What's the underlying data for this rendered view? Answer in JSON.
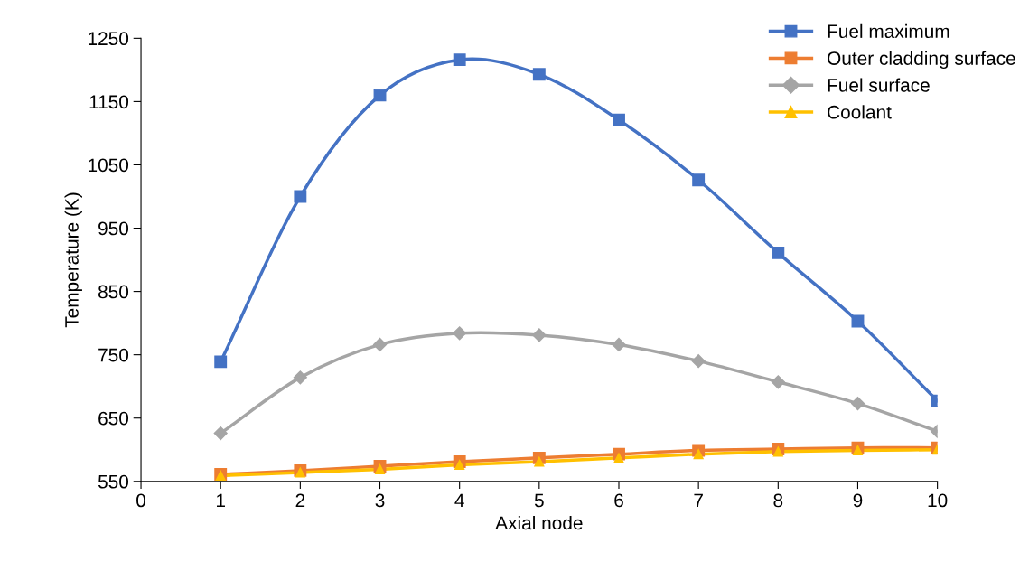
{
  "chart_data": {
    "type": "line",
    "xlabel": "Axial node",
    "ylabel": "Temperature (K)",
    "x": [
      1,
      2,
      3,
      4,
      5,
      6,
      7,
      8,
      9,
      10
    ],
    "series": [
      {
        "name": "Fuel maximum",
        "color": "#4472c4",
        "marker": "square",
        "values": [
          739,
          1000,
          1160,
          1216,
          1193,
          1121,
          1026,
          911,
          803,
          677
        ]
      },
      {
        "name": "Outer cladding surface",
        "color": "#ed7d31",
        "marker": "square",
        "values": [
          561,
          567,
          574,
          581,
          587,
          593,
          599,
          601,
          603,
          603
        ]
      },
      {
        "name": "Fuel surface",
        "color": "#a5a5a5",
        "marker": "diamond",
        "values": [
          626,
          714,
          766,
          784,
          781,
          766,
          740,
          707,
          673,
          629
        ]
      },
      {
        "name": "Coolant",
        "color": "#ffc000",
        "marker": "triangle",
        "values": [
          559,
          564,
          569,
          576,
          581,
          587,
          593,
          597,
          599,
          600
        ]
      }
    ],
    "xlim": [
      0,
      10
    ],
    "xticks": [
      0,
      1,
      2,
      3,
      4,
      5,
      6,
      7,
      8,
      9,
      10
    ],
    "ylim": [
      550,
      1250
    ],
    "yticks": [
      550,
      650,
      750,
      850,
      950,
      1050,
      1150,
      1250
    ],
    "grid": false,
    "legend": "top right",
    "line_style": "solid"
  }
}
